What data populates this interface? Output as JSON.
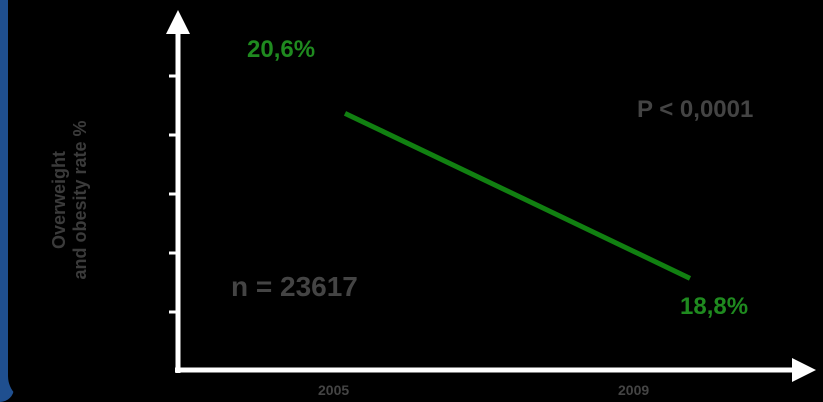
{
  "chart_data": {
    "type": "line",
    "x": [
      "2005",
      "2009"
    ],
    "categories": [
      "2005",
      "2009"
    ],
    "series": [
      {
        "values": [
          20.6,
          18.8
        ]
      }
    ],
    "data_labels": [
      "20,6%",
      "18,8%"
    ],
    "ylabel_lines": [
      "Overweight",
      "and obesity rate %"
    ],
    "ylim": [
      17.8,
      21.4
    ],
    "annotations": {
      "p_value": "P < 0,0001",
      "n": "n = 23617"
    },
    "grid": false,
    "colors": {
      "line": "#118011",
      "labels": "#1f8a1f",
      "axes": "#ffffff",
      "text": "#444444"
    }
  }
}
